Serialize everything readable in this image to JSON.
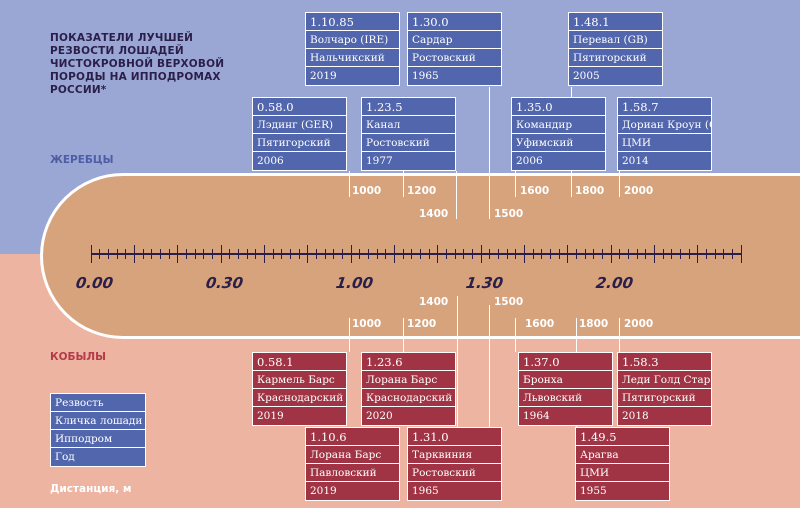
{
  "title": "ПОКАЗАТЕЛИ ЛУЧШЕЙ РЕЗВОСТИ ЛОШАДЕЙ ЧИСТОКРОВНОЙ ВЕРХОВОЙ ПОРОДЫ НА ИППОДРОМАХ РОССИИ*",
  "stallions_label": "ЖЕРЕБЦЫ",
  "mares_label": "КОБЫЛЫ",
  "distance_label": "Дистанция, м",
  "legend": [
    "Резвость",
    "Кличка лошади",
    "Ипподром",
    "Год"
  ],
  "axis": {
    "tick_labels": [
      "0.00",
      "0.30",
      "1.00",
      "1.30",
      "2.00"
    ],
    "tick_values_sec": [
      0,
      30,
      60,
      90,
      120
    ],
    "max_sec": 150
  },
  "distances": {
    "stallions": [
      "1000",
      "1200",
      "1400",
      "1500",
      "1600",
      "1800",
      "2000"
    ],
    "mares": [
      "1000",
      "1200",
      "1400",
      "1500",
      "1600",
      "1800",
      "2000"
    ]
  },
  "stallions": [
    {
      "time": "0.58.0",
      "horse": "Лэдинг (GER)",
      "track": "Пятигорский",
      "year": "2006"
    },
    {
      "time": "1.10.85",
      "horse": "Волчаро (IRE)",
      "track": "Нальчикский",
      "year": "2019"
    },
    {
      "time": "1.23.5",
      "horse": "Канал",
      "track": "Ростовский",
      "year": "1977"
    },
    {
      "time": "1.30.0",
      "horse": "Сардар",
      "track": "Ростовский",
      "year": "1965"
    },
    {
      "time": "1.35.0",
      "horse": "Командир",
      "track": "Уфимский",
      "year": "2006"
    },
    {
      "time": "1.48.1",
      "horse": "Перевал (GB)",
      "track": "Пятигорский",
      "year": "2005"
    },
    {
      "time": "1.58.7",
      "horse": "Дориан Кроун (GB)",
      "track": "ЦМИ",
      "year": "2014"
    }
  ],
  "mares": [
    {
      "time": "0.58.1",
      "horse": "Кармель Барс",
      "track": "Краснодарский",
      "year": "2019"
    },
    {
      "time": "1.10.6",
      "horse": "Лорана Барс",
      "track": "Павловский",
      "year": "2019"
    },
    {
      "time": "1.23.6",
      "horse": "Лорана Барс",
      "track": "Краснодарский",
      "year": "2020"
    },
    {
      "time": "1.31.0",
      "horse": "Тарквиния",
      "track": "Ростовский",
      "year": "1965"
    },
    {
      "time": "1.37.0",
      "horse": "Бронха",
      "track": "Львовский",
      "year": "1964"
    },
    {
      "time": "1.49.5",
      "horse": "Арагва",
      "track": "ЦМИ",
      "year": "1955"
    },
    {
      "time": "1.58.3",
      "horse": "Леди Голд Стар (USA)",
      "track": "Пятигорский",
      "year": "2018"
    }
  ],
  "colors": {
    "sky": "#9aa6d4",
    "ground": "#eeb4a2",
    "track": "#d6a37d",
    "stallion_box": "#5166ac",
    "mare_box": "#a03444",
    "ink": "#2b1f4a"
  }
}
